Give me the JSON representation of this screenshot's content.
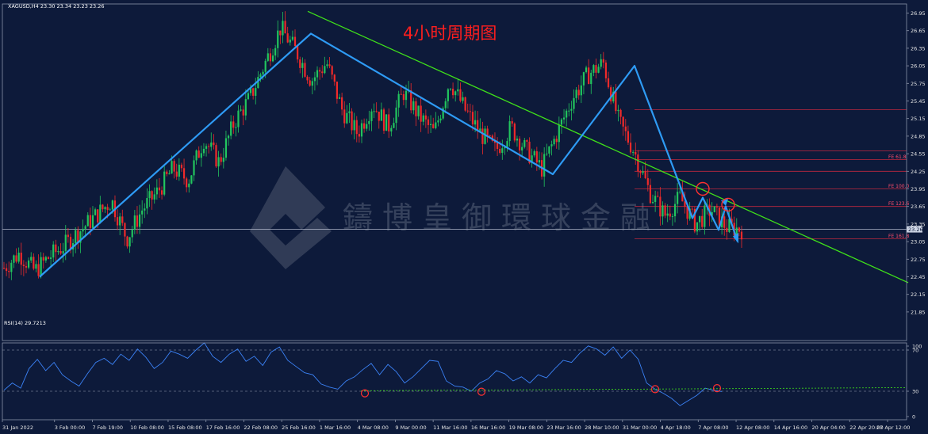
{
  "symbol_header": "XAGUSD,H4  23.30 23.34 23.23 23.26",
  "title": "4小时周期图",
  "watermark": "鑄博皇御環球金融",
  "current_price_label": "23.26",
  "rsi_header": "RSI(14) 29.7213",
  "colors": {
    "background": "#0d1a3a",
    "bull_candle": "#22c55e",
    "bear_candle": "#ef2a2a",
    "trend_line": "#3fe01a",
    "wave_line": "#2e9bf5",
    "rsi_line": "#3b82f6",
    "fib_line": "#c0283e",
    "annotation_circle": "#ff3030"
  },
  "fib_labels": [
    "FE 61.8",
    "FE 100.0",
    "FE 123.6",
    "FE 161.8"
  ],
  "chart_data": [
    {
      "type": "candlestick",
      "title": "4小时周期图",
      "symbol": "XAGUSD",
      "timeframe": "H4",
      "ylim": [
        21.85,
        27.1
      ],
      "y_ticks": [
        "26.95",
        "26.65",
        "26.35",
        "26.05",
        "25.75",
        "25.45",
        "25.15",
        "24.85",
        "24.55",
        "24.25",
        "23.95",
        "23.65",
        "23.35",
        "23.05",
        "22.75",
        "22.45",
        "22.15",
        "21.85"
      ],
      "x_ticks": [
        "31 Jan 2022",
        "3 Feb 00:00",
        "7 Feb 19:00",
        "10 Feb 08:00",
        "15 Feb 08:00",
        "17 Feb 16:00",
        "22 Feb 08:00",
        "25 Feb 16:00",
        "1 Mar 16:00",
        "4 Mar 08:00",
        "9 Mar 00:00",
        "11 Mar 16:00",
        "16 Mar 16:00",
        "19 Mar 08:00",
        "23 Mar 16:00",
        "28 Mar 10:00",
        "31 Mar 00:00",
        "4 Apr 18:00",
        "7 Apr 08:00",
        "12 Apr 08:00",
        "14 Apr 16:00",
        "20 Apr 04:00",
        "22 Apr 20:00",
        "27 Apr 12:00"
      ],
      "approx_close_path": [
        22.6,
        22.85,
        22.55,
        22.8,
        23.0,
        23.25,
        23.5,
        23.75,
        23.1,
        23.6,
        23.9,
        24.3,
        24.1,
        24.8,
        24.4,
        25.1,
        25.5,
        26.1,
        26.7,
        26.3,
        25.8,
        26.1,
        25.3,
        24.9,
        25.4,
        25.0,
        25.6,
        25.2,
        24.9,
        25.8,
        25.3,
        24.9,
        24.6,
        25.0,
        24.6,
        24.3,
        24.9,
        25.5,
        25.9,
        26.1,
        25.1,
        24.6,
        23.9,
        23.5,
        23.8,
        23.35,
        23.6,
        23.3,
        23.26
      ],
      "wave_points": [
        {
          "date": "1 Feb",
          "price": 22.45
        },
        {
          "date": "8 Mar",
          "price": 26.6
        },
        {
          "date": "5 Apr",
          "price": 24.2
        },
        {
          "date": "18 Apr",
          "price": 26.05
        },
        {
          "date": "22 Apr",
          "price": 23.45
        },
        {
          "date": "23 Apr",
          "price": 23.8
        },
        {
          "date": "26 Apr",
          "price": 23.25
        },
        {
          "date": "26 Apr",
          "price": 23.65
        },
        {
          "date": "27 Apr",
          "price": 23.05
        }
      ],
      "trend_line": [
        {
          "date": "8 Mar",
          "price": 26.98
        },
        {
          "date": "end",
          "price": 22.35
        }
      ],
      "current_price": 23.26,
      "fib_levels": [
        25.3,
        24.6,
        24.45,
        24.25,
        23.95,
        23.65,
        23.1
      ]
    },
    {
      "type": "line",
      "title": "RSI(14) 29.7213",
      "ylim": [
        0,
        100
      ],
      "y_ticks": [
        "100",
        "70",
        "30",
        "0"
      ],
      "guide_levels": [
        70,
        30
      ],
      "values": [
        31,
        38,
        33,
        52,
        61,
        50,
        58,
        46,
        40,
        35,
        47,
        58,
        62,
        56,
        66,
        60,
        71,
        63,
        52,
        58,
        69,
        66,
        62,
        70,
        77,
        64,
        58,
        66,
        71,
        59,
        64,
        55,
        68,
        73,
        60,
        54,
        48,
        46,
        37,
        34,
        32,
        40,
        44,
        51,
        57,
        46,
        56,
        49,
        38,
        44,
        52,
        60,
        59,
        40,
        35,
        34,
        30,
        38,
        42,
        50,
        47,
        40,
        44,
        38,
        46,
        43,
        52,
        60,
        58,
        67,
        74,
        71,
        65,
        73,
        62,
        70,
        61,
        38,
        32,
        28,
        23,
        16,
        21,
        26,
        33,
        31,
        29.7
      ],
      "annotated_lows": [
        1,
        3,
        5,
        7
      ]
    }
  ]
}
